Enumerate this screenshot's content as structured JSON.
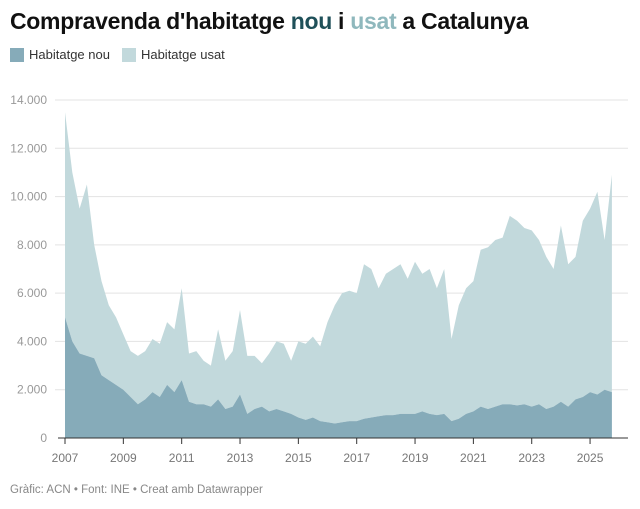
{
  "title": {
    "part1": "Compravenda d'habitatge ",
    "nou": "nou",
    "part2": " i ",
    "usat": "usat",
    "part3": " a Catalunya"
  },
  "colors": {
    "nou": "#86abb9",
    "usat": "#c2d9dc",
    "title_nou": "#1f5059",
    "title_usat": "#8fb8bd"
  },
  "footer": "Gràfic: ACN • Font: INE • Creat amb Datawrapper",
  "chart_data": {
    "type": "area",
    "stacked": true,
    "x": [
      "2007-Q1",
      "2007-Q2",
      "2007-Q3",
      "2007-Q4",
      "2008-Q1",
      "2008-Q2",
      "2008-Q3",
      "2008-Q4",
      "2009-Q1",
      "2009-Q2",
      "2009-Q3",
      "2009-Q4",
      "2010-Q1",
      "2010-Q2",
      "2010-Q3",
      "2010-Q4",
      "2011-Q1",
      "2011-Q2",
      "2011-Q3",
      "2011-Q4",
      "2012-Q1",
      "2012-Q2",
      "2012-Q3",
      "2012-Q4",
      "2013-Q1",
      "2013-Q2",
      "2013-Q3",
      "2013-Q4",
      "2014-Q1",
      "2014-Q2",
      "2014-Q3",
      "2014-Q4",
      "2015-Q1",
      "2015-Q2",
      "2015-Q3",
      "2015-Q4",
      "2016-Q1",
      "2016-Q2",
      "2016-Q3",
      "2016-Q4",
      "2017-Q1",
      "2017-Q2",
      "2017-Q3",
      "2017-Q4",
      "2018-Q1",
      "2018-Q2",
      "2018-Q3",
      "2018-Q4",
      "2019-Q1",
      "2019-Q2",
      "2019-Q3",
      "2019-Q4",
      "2020-Q1",
      "2020-Q2",
      "2020-Q3",
      "2020-Q4",
      "2021-Q1",
      "2021-Q2",
      "2021-Q3",
      "2021-Q4",
      "2022-Q1",
      "2022-Q2",
      "2022-Q3",
      "2022-Q4",
      "2023-Q1",
      "2023-Q2",
      "2023-Q3",
      "2023-Q4",
      "2024-Q1",
      "2024-Q2",
      "2024-Q3",
      "2024-Q4",
      "2025-Q1",
      "2025-Q2",
      "2025-Q3",
      "2025-Q4"
    ],
    "series": [
      {
        "name": "Habitatge nou",
        "values": [
          5000,
          4000,
          3500,
          3400,
          3300,
          2600,
          2400,
          2200,
          2000,
          1700,
          1400,
          1600,
          1900,
          1700,
          2200,
          1900,
          2400,
          1500,
          1400,
          1400,
          1300,
          1600,
          1200,
          1300,
          1800,
          1000,
          1200,
          1300,
          1100,
          1200,
          1100,
          1000,
          850,
          750,
          850,
          700,
          650,
          600,
          650,
          700,
          700,
          800,
          850,
          900,
          950,
          950,
          1000,
          1000,
          1000,
          1100,
          1000,
          950,
          1000,
          700,
          800,
          1000,
          1100,
          1300,
          1200,
          1300,
          1400,
          1400,
          1350,
          1400,
          1300,
          1400,
          1200,
          1300,
          1500,
          1300,
          1600,
          1700,
          1900,
          1800,
          2000,
          1900
        ]
      },
      {
        "name": "Habitatge usat",
        "values": [
          8500,
          7000,
          6000,
          7100,
          4700,
          3900,
          3100,
          2800,
          2300,
          1900,
          2000,
          2000,
          2200,
          2200,
          2600,
          2600,
          3800,
          2000,
          2200,
          1800,
          1700,
          2900,
          2000,
          2300,
          3500,
          2400,
          2200,
          1800,
          2400,
          2800,
          2800,
          2200,
          3150,
          3150,
          3350,
          3100,
          4150,
          4900,
          5350,
          5400,
          5300,
          6400,
          6150,
          5300,
          5850,
          6050,
          6200,
          5600,
          6300,
          5700,
          6000,
          5250,
          6000,
          3400,
          4700,
          5200,
          5400,
          6500,
          6700,
          6900,
          6900,
          7800,
          7650,
          7300,
          7300,
          6800,
          6300,
          5700,
          7300,
          5900,
          5900,
          7300,
          7600,
          8400,
          6200,
          9000
        ]
      }
    ],
    "yticks": [
      0,
      2000,
      4000,
      6000,
      8000,
      10000,
      12000,
      14000
    ],
    "ytick_labels": [
      "0",
      "2.000",
      "4.000",
      "6.000",
      "8.000",
      "10.000",
      "12.000",
      "14.000"
    ],
    "xticks": [
      "2007",
      "2009",
      "2011",
      "2013",
      "2015",
      "2017",
      "2019",
      "2021",
      "2023",
      "2025"
    ],
    "ylim": [
      0,
      14000
    ],
    "xlim": [
      2007,
      2026.3
    ],
    "grid": true,
    "legend": "top-left"
  }
}
